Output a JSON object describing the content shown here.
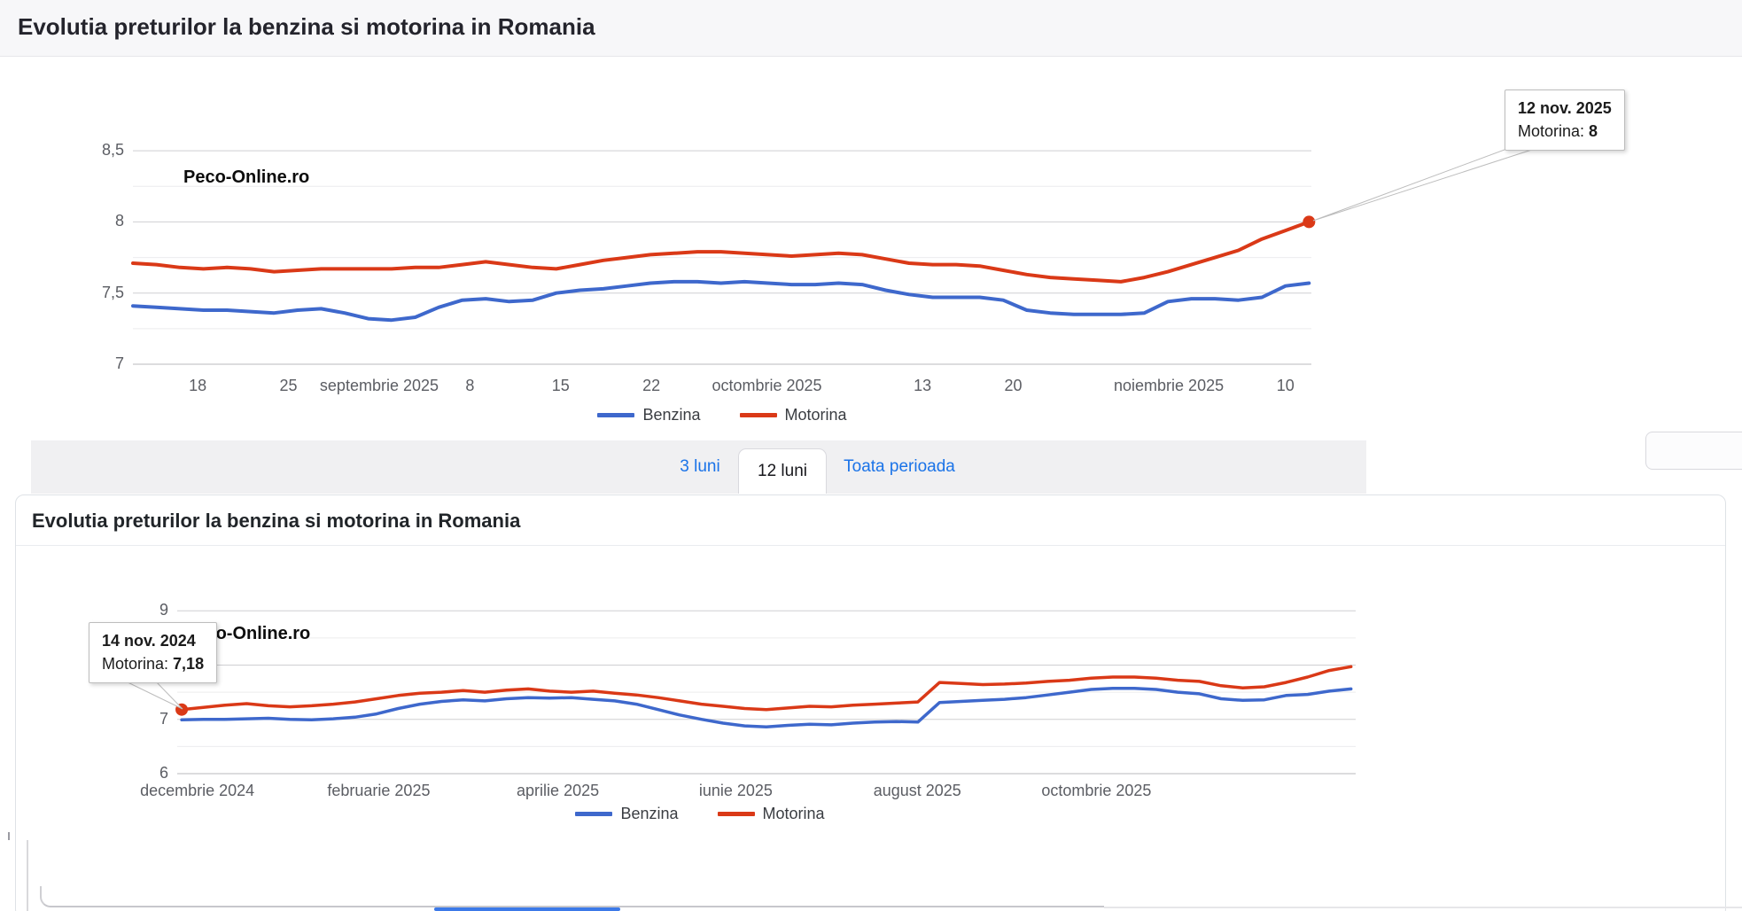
{
  "header": {
    "title": "Evolutia preturilor la benzina si motorina in Romania"
  },
  "panel2": {
    "title": "Evolutia preturilor la benzina si motorina in Romania"
  },
  "tabs": {
    "items": [
      {
        "label": "3 luni",
        "active": false
      },
      {
        "label": "12 luni",
        "active": true
      },
      {
        "label": "Toata perioada",
        "active": false
      }
    ]
  },
  "colors": {
    "benzina": "#3e68cc",
    "motorina": "#da3917",
    "link": "#1a73e8",
    "tooltip_dot": "#da3917"
  },
  "chart_data": [
    {
      "type": "line",
      "title": "Evolutia preturilor la benzina si motorina in Romania",
      "watermark": "Peco-Online.ro",
      "ylim": [
        7,
        8.75
      ],
      "y_axis": {
        "ticks": [
          {
            "label": "7",
            "value": 7
          },
          {
            "label": "7,5",
            "value": 7.5
          },
          {
            "label": "8",
            "value": 8
          },
          {
            "label": "8,5",
            "value": 8.5
          }
        ],
        "minor": [
          7.25,
          7.75,
          8.25
        ]
      },
      "x_ticks": [
        {
          "label": "18",
          "pos": 5.5
        },
        {
          "label": "25",
          "pos": 13.2
        },
        {
          "label": "septembrie 2025",
          "pos": 20.9
        },
        {
          "label": "8",
          "pos": 28.6
        },
        {
          "label": "15",
          "pos": 36.3
        },
        {
          "label": "22",
          "pos": 44.0
        },
        {
          "label": "octombrie 2025",
          "pos": 53.8
        },
        {
          "label": "13",
          "pos": 67.0
        },
        {
          "label": "20",
          "pos": 74.7
        },
        {
          "label": "noiembrie 2025",
          "pos": 87.9
        },
        {
          "label": "10",
          "pos": 97.8
        }
      ],
      "series": [
        {
          "name": "Benzina",
          "color": "#3e68cc",
          "values": [
            7.41,
            7.4,
            7.39,
            7.38,
            7.38,
            7.37,
            7.36,
            7.38,
            7.39,
            7.36,
            7.32,
            7.31,
            7.33,
            7.4,
            7.45,
            7.46,
            7.44,
            7.45,
            7.5,
            7.52,
            7.53,
            7.55,
            7.57,
            7.58,
            7.58,
            7.57,
            7.58,
            7.57,
            7.56,
            7.56,
            7.57,
            7.56,
            7.52,
            7.49,
            7.47,
            7.47,
            7.47,
            7.45,
            7.38,
            7.36,
            7.35,
            7.35,
            7.35,
            7.36,
            7.44,
            7.46,
            7.46,
            7.45,
            7.47,
            7.55,
            7.57
          ]
        },
        {
          "name": "Motorina",
          "color": "#da3917",
          "values": [
            7.71,
            7.7,
            7.68,
            7.67,
            7.68,
            7.67,
            7.65,
            7.66,
            7.67,
            7.67,
            7.67,
            7.67,
            7.68,
            7.68,
            7.7,
            7.72,
            7.7,
            7.68,
            7.67,
            7.7,
            7.73,
            7.75,
            7.77,
            7.78,
            7.79,
            7.79,
            7.78,
            7.77,
            7.76,
            7.77,
            7.78,
            7.77,
            7.74,
            7.71,
            7.7,
            7.7,
            7.69,
            7.66,
            7.63,
            7.61,
            7.6,
            7.59,
            7.58,
            7.61,
            7.65,
            7.7,
            7.75,
            7.8,
            7.88,
            7.94,
            8.0
          ]
        }
      ],
      "tooltip": {
        "date": "12 nov. 2025",
        "series": "Motorina",
        "value": "8",
        "anchor": "end"
      }
    },
    {
      "type": "line",
      "title": "Evolutia preturilor la benzina si motorina in Romania",
      "watermark": "Peco-Online.ro",
      "ylim": [
        6,
        9.64
      ],
      "y_axis": {
        "ticks": [
          {
            "label": "6",
            "value": 6
          },
          {
            "label": "7",
            "value": 7
          },
          {
            "label": "8",
            "value": 8
          },
          {
            "label": "9",
            "value": 9
          }
        ],
        "minor": [
          6.5,
          7.5,
          8.5
        ]
      },
      "x_ticks": [
        {
          "label": "decembrie 2024",
          "pos": 1.7
        },
        {
          "label": "februarie 2025",
          "pos": 17.1
        },
        {
          "label": "aprilie 2025",
          "pos": 32.3
        },
        {
          "label": "iunie 2025",
          "pos": 47.4
        },
        {
          "label": "august 2025",
          "pos": 62.8
        },
        {
          "label": "octombrie 2025",
          "pos": 78.0
        }
      ],
      "series": [
        {
          "name": "Benzina",
          "color": "#3e68cc",
          "values": [
            6.99,
            7.0,
            7.0,
            7.01,
            7.02,
            7.0,
            6.99,
            7.01,
            7.04,
            7.1,
            7.2,
            7.28,
            7.33,
            7.36,
            7.34,
            7.38,
            7.4,
            7.39,
            7.4,
            7.37,
            7.34,
            7.28,
            7.18,
            7.08,
            7.0,
            6.93,
            6.88,
            6.86,
            6.89,
            6.91,
            6.9,
            6.93,
            6.95,
            6.96,
            6.95,
            7.31,
            7.33,
            7.35,
            7.37,
            7.4,
            7.45,
            7.5,
            7.55,
            7.57,
            7.57,
            7.55,
            7.5,
            7.47,
            7.38,
            7.35,
            7.36,
            7.44,
            7.46,
            7.52,
            7.56
          ]
        },
        {
          "name": "Motorina",
          "color": "#da3917",
          "values": [
            7.18,
            7.22,
            7.26,
            7.29,
            7.25,
            7.23,
            7.25,
            7.28,
            7.32,
            7.38,
            7.44,
            7.48,
            7.5,
            7.53,
            7.5,
            7.54,
            7.56,
            7.52,
            7.5,
            7.52,
            7.48,
            7.45,
            7.4,
            7.34,
            7.28,
            7.24,
            7.2,
            7.18,
            7.21,
            7.24,
            7.23,
            7.26,
            7.28,
            7.3,
            7.32,
            7.68,
            7.66,
            7.64,
            7.65,
            7.67,
            7.7,
            7.72,
            7.76,
            7.78,
            7.78,
            7.76,
            7.72,
            7.7,
            7.62,
            7.58,
            7.6,
            7.68,
            7.78,
            7.9,
            7.97
          ]
        }
      ],
      "tooltip": {
        "date": "14 nov. 2024",
        "series": "Motorina",
        "value": "7,18",
        "anchor": "start"
      }
    }
  ]
}
